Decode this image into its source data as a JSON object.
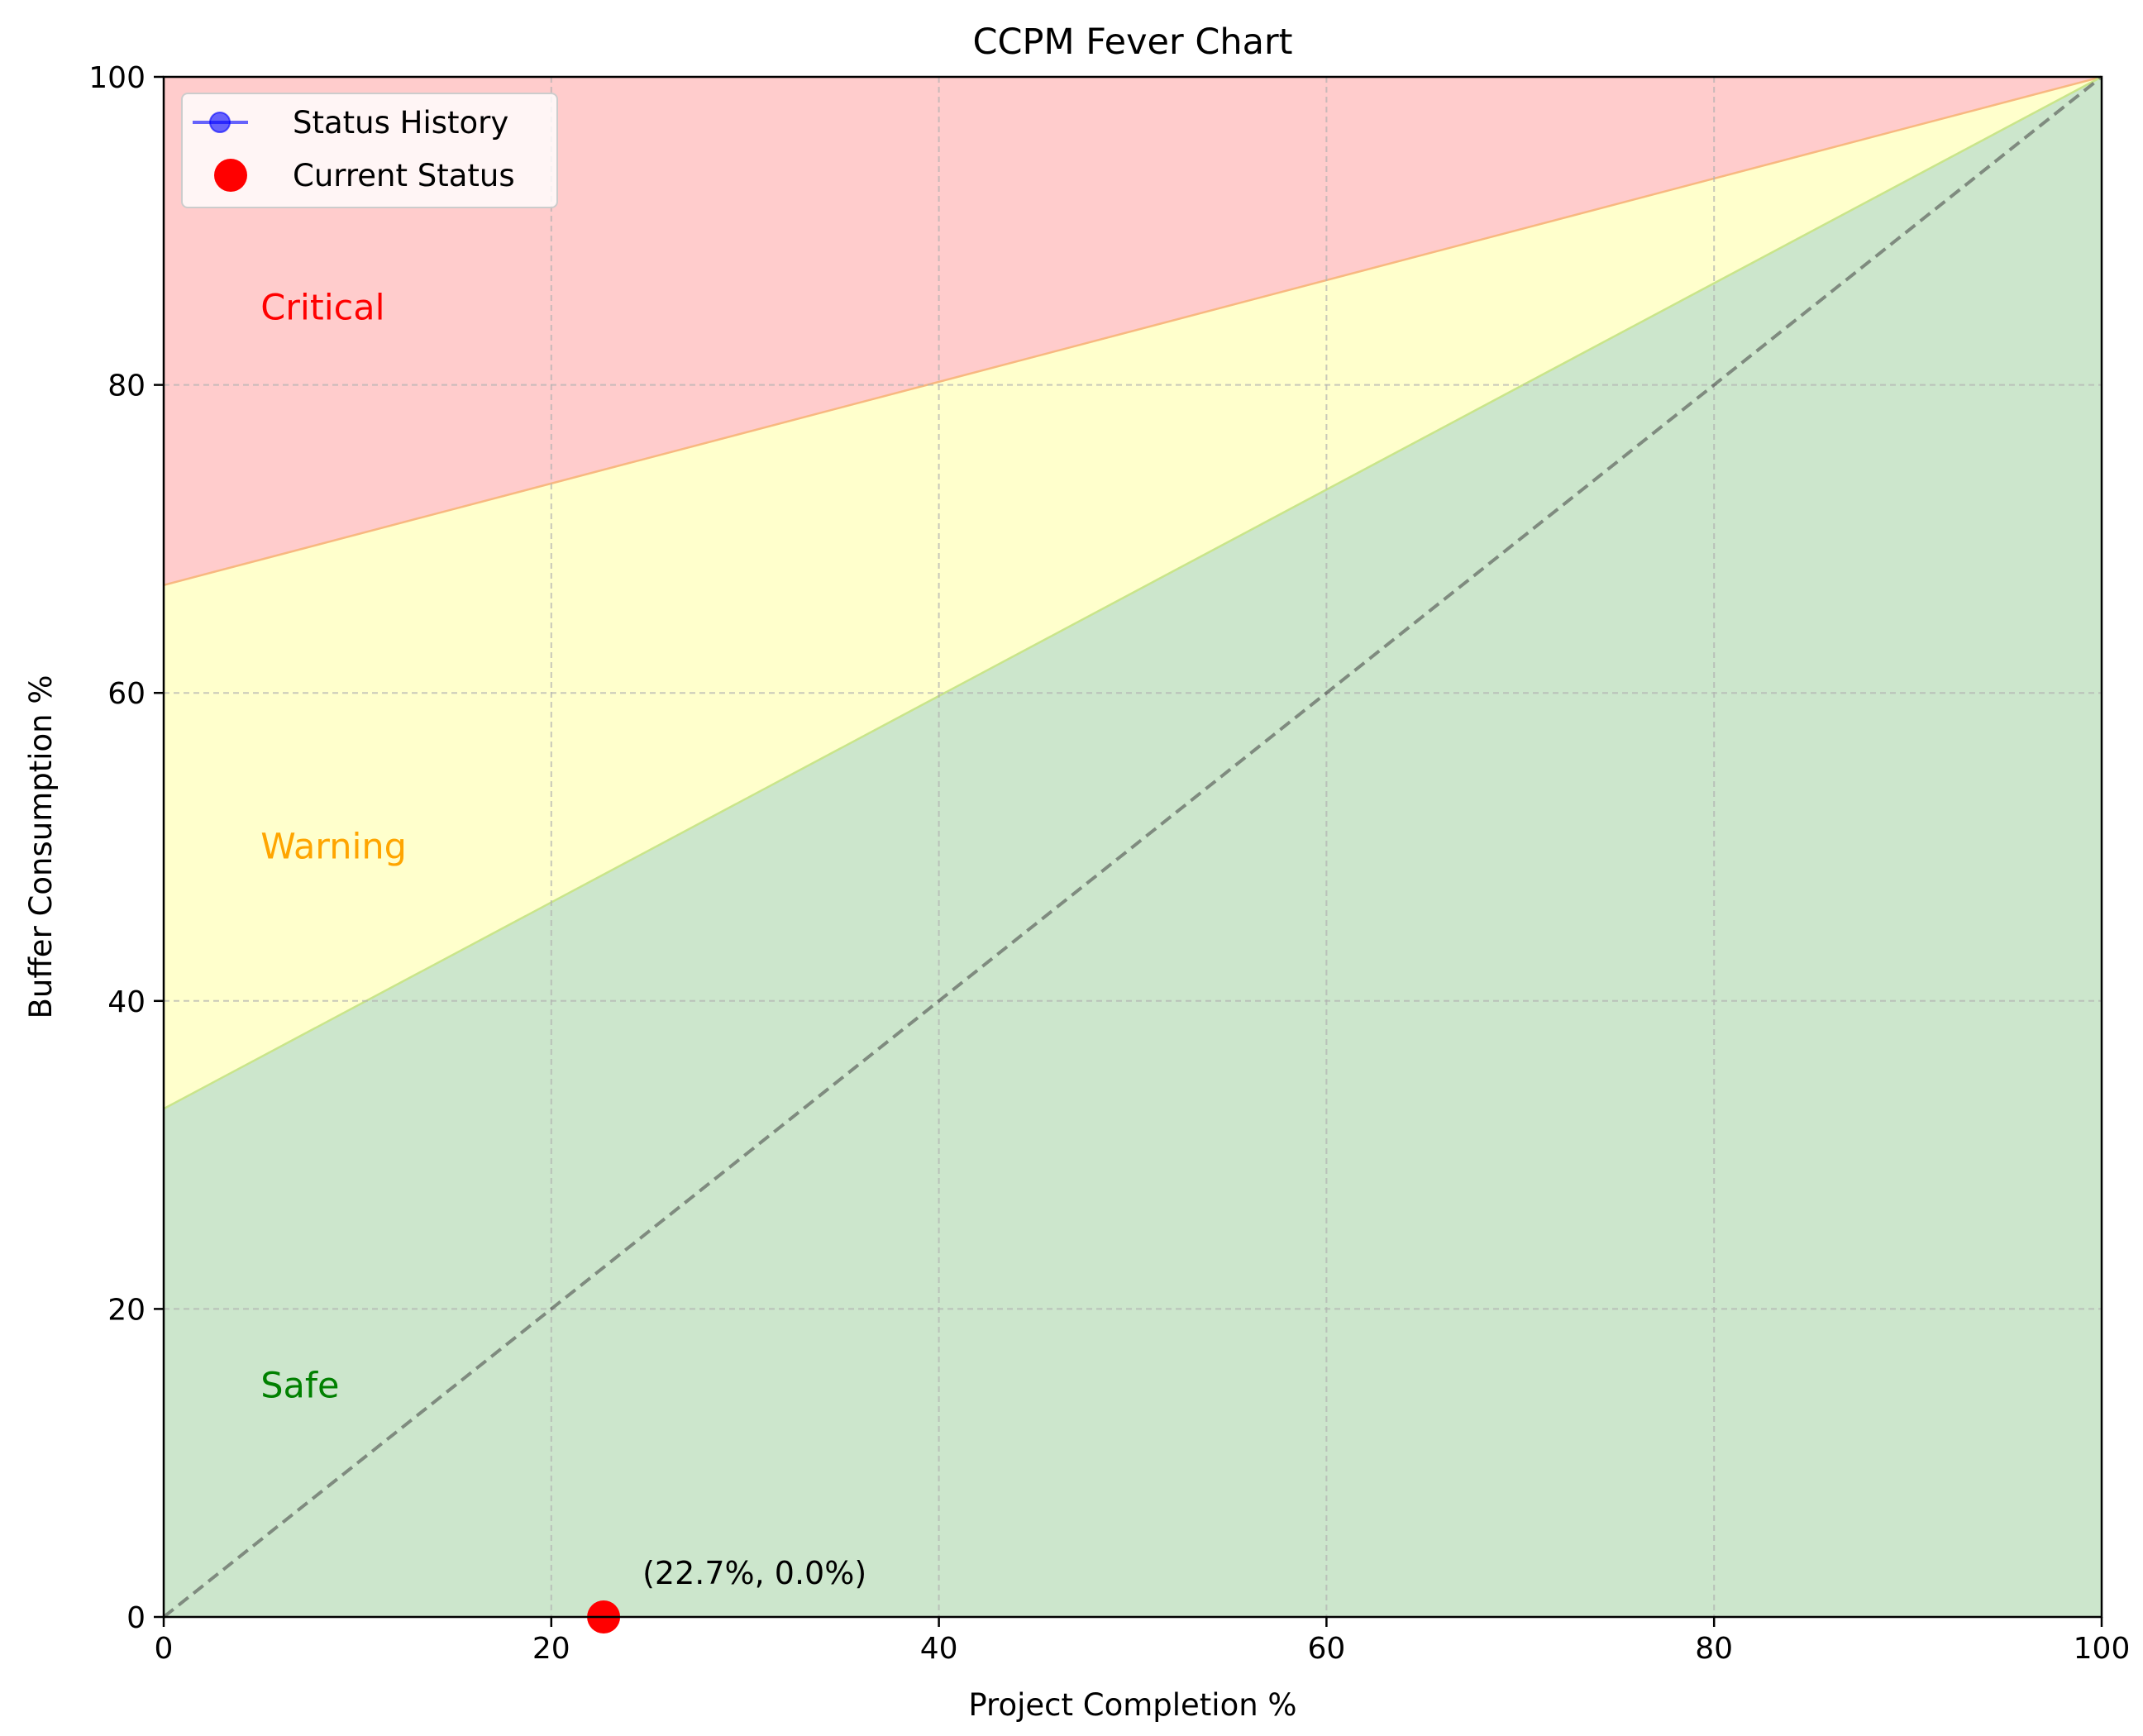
{
  "chart_data": {
    "type": "line",
    "title": "CCPM Fever Chart",
    "xlabel": "Project Completion %",
    "ylabel": "Buffer Consumption %",
    "xlim": [
      0,
      100
    ],
    "ylim": [
      0,
      100
    ],
    "xticks": [
      "0",
      "20",
      "40",
      "60",
      "80",
      "100"
    ],
    "yticks": [
      "0",
      "20",
      "40",
      "60",
      "80",
      "100"
    ],
    "grid": true,
    "legend_position": "top-left",
    "zones": [
      {
        "name": "Safe",
        "label": "Safe",
        "color": "#008000",
        "label_color": "#008000",
        "boundary": [
          [
            0,
            33
          ],
          [
            100,
            100
          ]
        ]
      },
      {
        "name": "Warning",
        "label": "Warning",
        "color": "#ffff00",
        "label_color": "#ffa500",
        "boundary": [
          [
            0,
            67
          ],
          [
            100,
            100
          ]
        ]
      },
      {
        "name": "Critical",
        "label": "Critical",
        "color": "#ff0000",
        "label_color": "#ff0000"
      }
    ],
    "zone_label_points": [
      {
        "zone": "Critical",
        "x": 5,
        "y": 85
      },
      {
        "zone": "Warning",
        "x": 5,
        "y": 50
      },
      {
        "zone": "Safe",
        "x": 5,
        "y": 15
      }
    ],
    "diagonal": [
      [
        0,
        0
      ],
      [
        100,
        100
      ]
    ],
    "series": [
      {
        "name": "Status History",
        "color": "#0000ff",
        "x": [
          22.7
        ],
        "y": [
          0.0
        ]
      },
      {
        "name": "Current Status",
        "color": "#ff0000",
        "x": [
          22.7
        ],
        "y": [
          0.0
        ]
      }
    ],
    "annotation": {
      "text": "(22.7%, 0.0%)",
      "x": 22.7,
      "y": 0.0
    }
  }
}
